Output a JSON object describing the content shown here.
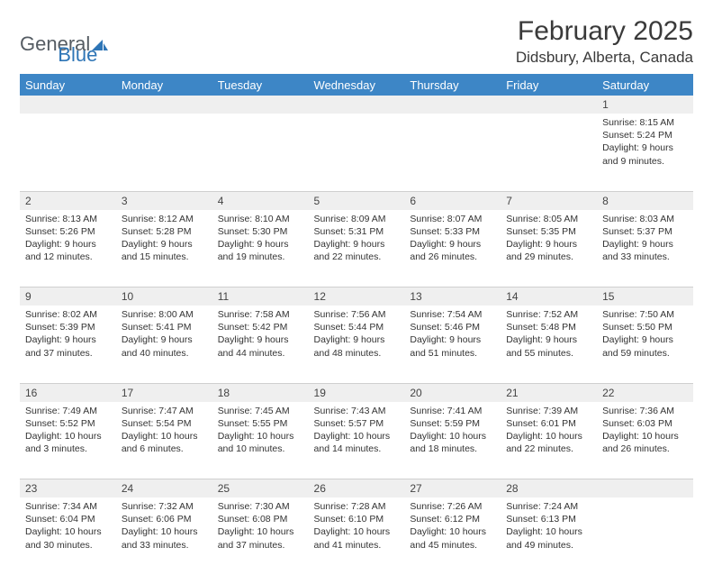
{
  "logo": {
    "text1": "General",
    "text2": "Blue",
    "shape_color": "#2e75b6"
  },
  "header": {
    "title": "February 2025",
    "location": "Didsbury, Alberta, Canada"
  },
  "colors": {
    "header_bg": "#3d86c6",
    "header_fg": "#ffffff",
    "daynum_bg": "#efefef",
    "divider": "#cfcfcf"
  },
  "weekdays": [
    "Sunday",
    "Monday",
    "Tuesday",
    "Wednesday",
    "Thursday",
    "Friday",
    "Saturday"
  ],
  "weeks": [
    [
      null,
      null,
      null,
      null,
      null,
      null,
      {
        "n": "1",
        "sr": "8:15 AM",
        "ss": "5:24 PM",
        "dl": "9 hours and 9 minutes."
      }
    ],
    [
      {
        "n": "2",
        "sr": "8:13 AM",
        "ss": "5:26 PM",
        "dl": "9 hours and 12 minutes."
      },
      {
        "n": "3",
        "sr": "8:12 AM",
        "ss": "5:28 PM",
        "dl": "9 hours and 15 minutes."
      },
      {
        "n": "4",
        "sr": "8:10 AM",
        "ss": "5:30 PM",
        "dl": "9 hours and 19 minutes."
      },
      {
        "n": "5",
        "sr": "8:09 AM",
        "ss": "5:31 PM",
        "dl": "9 hours and 22 minutes."
      },
      {
        "n": "6",
        "sr": "8:07 AM",
        "ss": "5:33 PM",
        "dl": "9 hours and 26 minutes."
      },
      {
        "n": "7",
        "sr": "8:05 AM",
        "ss": "5:35 PM",
        "dl": "9 hours and 29 minutes."
      },
      {
        "n": "8",
        "sr": "8:03 AM",
        "ss": "5:37 PM",
        "dl": "9 hours and 33 minutes."
      }
    ],
    [
      {
        "n": "9",
        "sr": "8:02 AM",
        "ss": "5:39 PM",
        "dl": "9 hours and 37 minutes."
      },
      {
        "n": "10",
        "sr": "8:00 AM",
        "ss": "5:41 PM",
        "dl": "9 hours and 40 minutes."
      },
      {
        "n": "11",
        "sr": "7:58 AM",
        "ss": "5:42 PM",
        "dl": "9 hours and 44 minutes."
      },
      {
        "n": "12",
        "sr": "7:56 AM",
        "ss": "5:44 PM",
        "dl": "9 hours and 48 minutes."
      },
      {
        "n": "13",
        "sr": "7:54 AM",
        "ss": "5:46 PM",
        "dl": "9 hours and 51 minutes."
      },
      {
        "n": "14",
        "sr": "7:52 AM",
        "ss": "5:48 PM",
        "dl": "9 hours and 55 minutes."
      },
      {
        "n": "15",
        "sr": "7:50 AM",
        "ss": "5:50 PM",
        "dl": "9 hours and 59 minutes."
      }
    ],
    [
      {
        "n": "16",
        "sr": "7:49 AM",
        "ss": "5:52 PM",
        "dl": "10 hours and 3 minutes."
      },
      {
        "n": "17",
        "sr": "7:47 AM",
        "ss": "5:54 PM",
        "dl": "10 hours and 6 minutes."
      },
      {
        "n": "18",
        "sr": "7:45 AM",
        "ss": "5:55 PM",
        "dl": "10 hours and 10 minutes."
      },
      {
        "n": "19",
        "sr": "7:43 AM",
        "ss": "5:57 PM",
        "dl": "10 hours and 14 minutes."
      },
      {
        "n": "20",
        "sr": "7:41 AM",
        "ss": "5:59 PM",
        "dl": "10 hours and 18 minutes."
      },
      {
        "n": "21",
        "sr": "7:39 AM",
        "ss": "6:01 PM",
        "dl": "10 hours and 22 minutes."
      },
      {
        "n": "22",
        "sr": "7:36 AM",
        "ss": "6:03 PM",
        "dl": "10 hours and 26 minutes."
      }
    ],
    [
      {
        "n": "23",
        "sr": "7:34 AM",
        "ss": "6:04 PM",
        "dl": "10 hours and 30 minutes."
      },
      {
        "n": "24",
        "sr": "7:32 AM",
        "ss": "6:06 PM",
        "dl": "10 hours and 33 minutes."
      },
      {
        "n": "25",
        "sr": "7:30 AM",
        "ss": "6:08 PM",
        "dl": "10 hours and 37 minutes."
      },
      {
        "n": "26",
        "sr": "7:28 AM",
        "ss": "6:10 PM",
        "dl": "10 hours and 41 minutes."
      },
      {
        "n": "27",
        "sr": "7:26 AM",
        "ss": "6:12 PM",
        "dl": "10 hours and 45 minutes."
      },
      {
        "n": "28",
        "sr": "7:24 AM",
        "ss": "6:13 PM",
        "dl": "10 hours and 49 minutes."
      },
      null
    ]
  ],
  "labels": {
    "sunrise": "Sunrise:",
    "sunset": "Sunset:",
    "daylight": "Daylight:"
  }
}
